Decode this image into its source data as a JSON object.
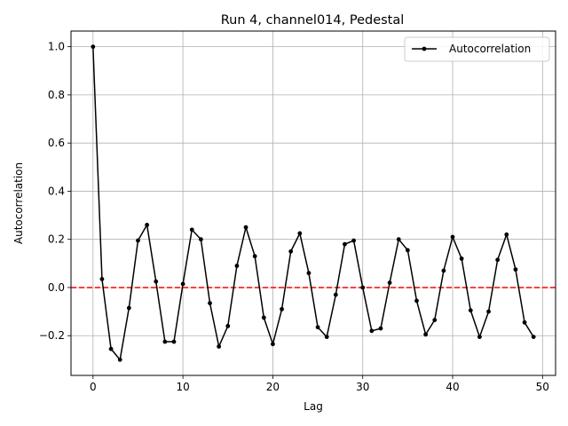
{
  "chart_data": {
    "type": "line",
    "title": "Run 4, channel014, Pedestal",
    "xlabel": "Lag",
    "ylabel": "Autocorrelation",
    "xlim": [
      -2.45,
      51.45
    ],
    "ylim": [
      -0.365,
      1.065
    ],
    "xticks": [
      0,
      10,
      20,
      30,
      40,
      50
    ],
    "yticks": [
      -0.2,
      0.0,
      0.2,
      0.4,
      0.6,
      0.8,
      1.0
    ],
    "grid": true,
    "legend_position": "top-right",
    "series": [
      {
        "name": "Autocorrelation",
        "color": "#000000",
        "marker": "point",
        "x": [
          0,
          1,
          2,
          3,
          4,
          5,
          6,
          7,
          8,
          9,
          10,
          11,
          12,
          13,
          14,
          15,
          16,
          17,
          18,
          19,
          20,
          21,
          22,
          23,
          24,
          25,
          26,
          27,
          28,
          29,
          30,
          31,
          32,
          33,
          34,
          35,
          36,
          37,
          38,
          39,
          40,
          41,
          42,
          43,
          44,
          45,
          46,
          47,
          48,
          49
        ],
        "values": [
          1.0,
          0.035,
          -0.255,
          -0.3,
          -0.085,
          0.195,
          0.26,
          0.025,
          -0.225,
          -0.225,
          0.015,
          0.24,
          0.2,
          -0.065,
          -0.245,
          -0.16,
          0.09,
          0.25,
          0.13,
          -0.125,
          -0.235,
          -0.09,
          0.15,
          0.225,
          0.06,
          -0.165,
          -0.205,
          -0.03,
          0.18,
          0.195,
          0.0,
          -0.18,
          -0.17,
          0.02,
          0.2,
          0.155,
          -0.055,
          -0.195,
          -0.135,
          0.07,
          0.21,
          0.12,
          -0.095,
          -0.205,
          -0.1,
          0.115,
          0.22,
          0.075,
          -0.145,
          -0.205
        ]
      }
    ],
    "reference_line": {
      "y": 0.0,
      "color": "#ff0000",
      "style": "dashed"
    }
  }
}
